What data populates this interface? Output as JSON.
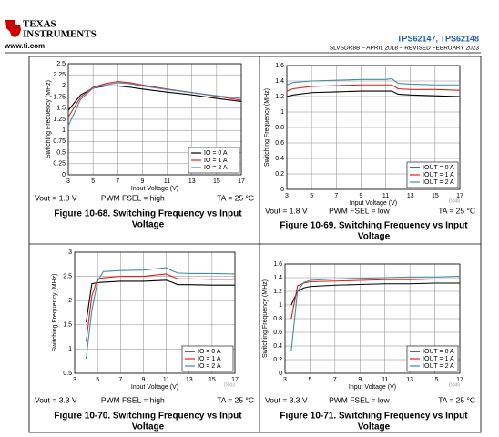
{
  "header": {
    "logo_line1": "TEXAS",
    "logo_line2": "INSTRUMENTS",
    "url": "www.ti.com",
    "part": "TPS62147, TPS62148",
    "doc": "SLVSDR8B – APRIL 2018 – REVISED FEBRUARY 2023"
  },
  "chart_data": [
    {
      "type": "line",
      "title": [
        "Figure 10-68. Switching Frequency vs Input",
        "Voltage"
      ],
      "x_label": "Input Voltage (V)",
      "y_label": "Switching Frequency (MHz)",
      "conditions": [
        "Vout = 1.8 V",
        "PWM FSEL = high",
        "TA = 25 °C"
      ],
      "x": [
        3,
        4,
        5,
        6,
        7,
        8,
        9,
        11,
        13,
        15,
        17
      ],
      "series": [
        {
          "name": "IO = 0 A",
          "color": "#000000",
          "values": [
            1.45,
            1.8,
            1.95,
            2.0,
            2.0,
            1.97,
            1.93,
            1.86,
            1.8,
            1.72,
            1.65
          ]
        },
        {
          "name": "IO = 1 A",
          "color": "#e0201a",
          "values": [
            1.3,
            1.75,
            1.97,
            2.05,
            2.1,
            2.07,
            2.02,
            1.93,
            1.85,
            1.77,
            1.68
          ]
        },
        {
          "name": "IO = 2 A",
          "color": "#4f86ad",
          "values": [
            1.1,
            1.7,
            1.95,
            2.02,
            2.07,
            2.05,
            2.0,
            1.92,
            1.85,
            1.78,
            1.72
          ]
        }
      ],
      "xlim": [
        3,
        17
      ],
      "xticks": [
        3,
        5,
        7,
        9,
        11,
        13,
        15,
        17
      ],
      "ylim": [
        0,
        2.5
      ],
      "yticks": [
        0,
        0.25,
        0.5,
        0.75,
        1,
        1.25,
        1.5,
        1.75,
        2,
        2.25,
        2.5
      ],
      "grid": true,
      "legend": "lower right"
    },
    {
      "type": "line",
      "title": [
        "Figure 10-69. Switching Frequency vs Input",
        "Voltage"
      ],
      "x_label": "Input Voltage (V)",
      "y_label": "Switching Frequency (MHz)",
      "conditions": [
        "Vout = 1.8 V",
        "PWM FSEL = low",
        "TA = 25 °C"
      ],
      "code": "D048",
      "x": [
        3,
        3.5,
        5,
        7,
        9,
        11,
        11.5,
        12,
        13,
        15,
        17
      ],
      "series": [
        {
          "name": "IOUT = 0 A",
          "color": "#000000",
          "values": [
            1.2,
            1.22,
            1.25,
            1.26,
            1.27,
            1.27,
            1.27,
            1.23,
            1.22,
            1.21,
            1.2
          ]
        },
        {
          "name": "IOUT = 1 A",
          "color": "#e0201a",
          "values": [
            1.27,
            1.3,
            1.33,
            1.34,
            1.35,
            1.35,
            1.35,
            1.3,
            1.29,
            1.29,
            1.28
          ]
        },
        {
          "name": "IOUT = 2 A",
          "color": "#3f8fa0",
          "values": [
            1.35,
            1.38,
            1.4,
            1.41,
            1.42,
            1.42,
            1.43,
            1.37,
            1.36,
            1.35,
            1.35
          ]
        }
      ],
      "xlim": [
        3,
        17
      ],
      "xticks": [
        3,
        5,
        7,
        9,
        11,
        13,
        15,
        17
      ],
      "ylim": [
        0,
        1.6
      ],
      "yticks": [
        0,
        0.2,
        0.4,
        0.6,
        0.8,
        1,
        1.2,
        1.4,
        1.6
      ],
      "grid": true,
      "legend": "lower right"
    },
    {
      "type": "line",
      "title": [
        "Figure 10-70. Switching Frequency vs Input",
        "Voltage"
      ],
      "x_label": "Input Voltage (V)",
      "y_label": "Switching Frequency (MHz)",
      "conditions": [
        "Vout = 3.3 V",
        "PWM FSEL = high",
        "TA = 25 °C"
      ],
      "code": "D003",
      "x": [
        4,
        4.5,
        5,
        5.5,
        7,
        9,
        11,
        11.5,
        12,
        13,
        15,
        17
      ],
      "series": [
        {
          "name": "IO = 0 A",
          "color": "#000000",
          "values": [
            1.55,
            2.35,
            2.37,
            2.38,
            2.4,
            2.4,
            2.42,
            2.38,
            2.33,
            2.33,
            2.32,
            2.32
          ]
        },
        {
          "name": "IO = 1 A",
          "color": "#e0201a",
          "values": [
            1.15,
            2.1,
            2.45,
            2.47,
            2.5,
            2.5,
            2.55,
            2.5,
            2.45,
            2.45,
            2.44,
            2.44
          ]
        },
        {
          "name": "IO = 2 A",
          "color": "#3f8fa0",
          "values": [
            0.8,
            1.8,
            2.4,
            2.6,
            2.62,
            2.63,
            2.68,
            2.62,
            2.57,
            2.56,
            2.56,
            2.55
          ]
        }
      ],
      "xlim": [
        3,
        17
      ],
      "xticks": [
        3,
        5,
        7,
        9,
        11,
        13,
        15,
        17
      ],
      "ylim": [
        0.5,
        3
      ],
      "yticks": [
        0.5,
        1,
        1.5,
        2,
        2.5,
        3
      ],
      "grid": true,
      "legend": "lower right"
    },
    {
      "type": "line",
      "title": [
        "Figure 10-71. Switching Frequency vs Input",
        "Voltage"
      ],
      "x_label": "Input Voltage (V)",
      "y_label": "Switching Frequency (MHz)",
      "conditions": [
        "Vout = 3.3 V",
        "PWM FSEL = low",
        "TA = 25 °C"
      ],
      "code": "D049",
      "x": [
        3.5,
        4,
        4.5,
        5,
        7,
        9,
        11,
        13,
        15,
        17
      ],
      "series": [
        {
          "name": "IOUT = 0 A",
          "color": "#000000",
          "values": [
            1.0,
            1.2,
            1.25,
            1.27,
            1.29,
            1.3,
            1.31,
            1.31,
            1.32,
            1.32
          ]
        },
        {
          "name": "IOUT = 1 A",
          "color": "#e0201a",
          "values": [
            0.8,
            1.28,
            1.32,
            1.34,
            1.35,
            1.36,
            1.37,
            1.37,
            1.38,
            1.38
          ]
        },
        {
          "name": "IOUT = 2 A",
          "color": "#3f8fa0",
          "values": [
            0.33,
            1.2,
            1.33,
            1.36,
            1.38,
            1.39,
            1.4,
            1.41,
            1.41,
            1.42
          ]
        }
      ],
      "xlim": [
        3,
        17
      ],
      "xticks": [
        3,
        5,
        7,
        9,
        11,
        13,
        15,
        17
      ],
      "ylim": [
        0,
        1.6
      ],
      "yticks": [
        0,
        0.2,
        0.4,
        0.6,
        0.8,
        1,
        1.2,
        1.4,
        1.6
      ],
      "grid": true,
      "legend": "lower right"
    }
  ]
}
